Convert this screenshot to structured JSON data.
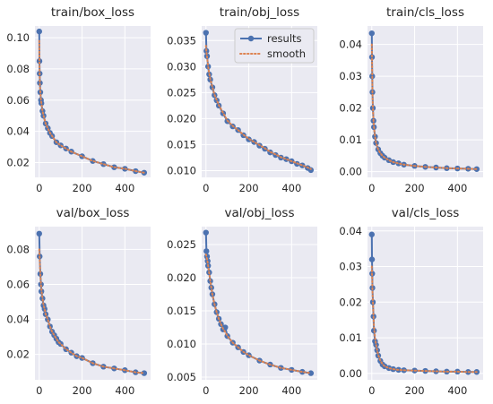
{
  "colors": {
    "results": "#4c72b0",
    "smooth": "#dd8452",
    "background": "#eaeaf2",
    "grid": "#ffffff"
  },
  "legend": {
    "placement": "top-right",
    "panel": 1,
    "items": [
      "results",
      "smooth"
    ]
  },
  "chart_data": [
    {
      "type": "line",
      "title": "train/box_loss",
      "xlim": [
        -20,
        520
      ],
      "ylim": [
        0.0105,
        0.1075
      ],
      "xticks": [
        0,
        200,
        400
      ],
      "yticks": [
        0.02,
        0.04,
        0.06,
        0.08,
        0.1
      ],
      "ytick_labels": [
        "0.02",
        "0.04",
        "0.06",
        "0.08",
        "0.10"
      ],
      "series": [
        {
          "name": "results",
          "x": [
            0,
            1,
            2,
            3,
            5,
            8,
            10,
            15,
            20,
            30,
            40,
            50,
            60,
            80,
            100,
            125,
            150,
            200,
            250,
            300,
            350,
            400,
            450,
            490
          ],
          "y": [
            0.104,
            0.085,
            0.077,
            0.071,
            0.065,
            0.06,
            0.058,
            0.053,
            0.05,
            0.045,
            0.042,
            0.039,
            0.037,
            0.033,
            0.031,
            0.029,
            0.027,
            0.024,
            0.021,
            0.019,
            0.017,
            0.016,
            0.0145,
            0.0135
          ]
        },
        {
          "name": "smooth",
          "x": [
            0,
            1,
            2,
            3,
            5,
            8,
            10,
            15,
            20,
            30,
            40,
            50,
            60,
            80,
            100,
            125,
            150,
            200,
            250,
            300,
            350,
            400,
            450,
            490
          ],
          "y": [
            0.098,
            0.084,
            0.076,
            0.07,
            0.065,
            0.06,
            0.058,
            0.053,
            0.05,
            0.045,
            0.042,
            0.039,
            0.037,
            0.033,
            0.031,
            0.029,
            0.027,
            0.024,
            0.021,
            0.019,
            0.017,
            0.016,
            0.0145,
            0.0135
          ]
        }
      ]
    },
    {
      "type": "line",
      "title": "train/obj_loss",
      "xlim": [
        -20,
        520
      ],
      "ylim": [
        0.0087,
        0.0378
      ],
      "xticks": [
        0,
        200,
        400
      ],
      "yticks": [
        0.01,
        0.015,
        0.02,
        0.025,
        0.03,
        0.035
      ],
      "ytick_labels": [
        "0.010",
        "0.015",
        "0.020",
        "0.025",
        "0.030",
        "0.035"
      ],
      "series": [
        {
          "name": "results",
          "x": [
            0,
            2,
            5,
            10,
            15,
            20,
            30,
            40,
            50,
            60,
            80,
            100,
            125,
            150,
            175,
            200,
            225,
            250,
            275,
            300,
            325,
            350,
            375,
            400,
            425,
            450,
            475,
            490
          ],
          "y": [
            0.0365,
            0.033,
            0.032,
            0.03,
            0.0285,
            0.0275,
            0.026,
            0.0245,
            0.0235,
            0.0225,
            0.021,
            0.0195,
            0.0185,
            0.0178,
            0.0168,
            0.016,
            0.0155,
            0.0148,
            0.0142,
            0.0135,
            0.013,
            0.0125,
            0.0122,
            0.0118,
            0.0113,
            0.011,
            0.0105,
            0.0101
          ]
        },
        {
          "name": "smooth",
          "x": [
            0,
            2,
            5,
            10,
            15,
            20,
            30,
            40,
            50,
            60,
            80,
            100,
            125,
            150,
            175,
            200,
            225,
            250,
            275,
            300,
            325,
            350,
            375,
            400,
            425,
            450,
            475,
            490
          ],
          "y": [
            0.034,
            0.0328,
            0.0318,
            0.03,
            0.0287,
            0.0276,
            0.0261,
            0.0246,
            0.0236,
            0.0226,
            0.0211,
            0.0196,
            0.0186,
            0.0178,
            0.0169,
            0.0161,
            0.0155,
            0.0149,
            0.0143,
            0.0136,
            0.0131,
            0.0126,
            0.0122,
            0.0118,
            0.0114,
            0.011,
            0.0106,
            0.0103
          ]
        }
      ]
    },
    {
      "type": "line",
      "title": "train/cls_loss",
      "xlim": [
        -20,
        520
      ],
      "ylim": [
        -0.0018,
        0.0458
      ],
      "xticks": [
        0,
        200,
        400
      ],
      "yticks": [
        0.0,
        0.01,
        0.02,
        0.03,
        0.04
      ],
      "ytick_labels": [
        "0.00",
        "0.01",
        "0.02",
        "0.03",
        "0.04"
      ],
      "series": [
        {
          "name": "results",
          "x": [
            0,
            1,
            2,
            3,
            5,
            8,
            10,
            15,
            20,
            30,
            40,
            50,
            60,
            80,
            100,
            125,
            150,
            200,
            250,
            300,
            350,
            400,
            450,
            490
          ],
          "y": [
            0.0435,
            0.036,
            0.03,
            0.025,
            0.02,
            0.016,
            0.014,
            0.011,
            0.009,
            0.007,
            0.0058,
            0.005,
            0.0044,
            0.0036,
            0.003,
            0.0026,
            0.0022,
            0.0018,
            0.0015,
            0.0013,
            0.0011,
            0.001,
            0.0009,
            0.0008
          ]
        },
        {
          "name": "smooth",
          "x": [
            0,
            1,
            2,
            3,
            5,
            8,
            10,
            15,
            20,
            30,
            40,
            50,
            60,
            80,
            100,
            125,
            150,
            200,
            250,
            300,
            350,
            400,
            450,
            490
          ],
          "y": [
            0.04,
            0.035,
            0.03,
            0.025,
            0.02,
            0.016,
            0.014,
            0.011,
            0.009,
            0.007,
            0.0058,
            0.005,
            0.0044,
            0.0036,
            0.003,
            0.0026,
            0.0022,
            0.0018,
            0.0015,
            0.0013,
            0.0011,
            0.001,
            0.0009,
            0.0008
          ]
        }
      ]
    },
    {
      "type": "line",
      "title": "val/box_loss",
      "xlim": [
        -20,
        520
      ],
      "ylim": [
        0.0055,
        0.093
      ],
      "xticks": [
        0,
        200,
        400
      ],
      "yticks": [
        0.02,
        0.04,
        0.06,
        0.08
      ],
      "ytick_labels": [
        "0.02",
        "0.04",
        "0.06",
        "0.08"
      ],
      "series": [
        {
          "name": "results",
          "x": [
            0,
            2,
            5,
            8,
            10,
            15,
            20,
            25,
            30,
            40,
            50,
            60,
            70,
            80,
            90,
            100,
            125,
            150,
            175,
            200,
            250,
            300,
            350,
            400,
            450,
            490
          ],
          "y": [
            0.089,
            0.076,
            0.066,
            0.06,
            0.056,
            0.052,
            0.048,
            0.046,
            0.043,
            0.04,
            0.036,
            0.033,
            0.031,
            0.029,
            0.027,
            0.026,
            0.023,
            0.021,
            0.019,
            0.018,
            0.015,
            0.013,
            0.012,
            0.011,
            0.0098,
            0.0093
          ]
        },
        {
          "name": "smooth",
          "x": [
            0,
            2,
            5,
            8,
            10,
            15,
            20,
            25,
            30,
            40,
            50,
            60,
            70,
            80,
            90,
            100,
            125,
            150,
            175,
            200,
            250,
            300,
            350,
            400,
            450,
            490
          ],
          "y": [
            0.08,
            0.074,
            0.066,
            0.06,
            0.057,
            0.052,
            0.048,
            0.046,
            0.043,
            0.04,
            0.036,
            0.033,
            0.031,
            0.029,
            0.027,
            0.026,
            0.023,
            0.021,
            0.019,
            0.018,
            0.015,
            0.013,
            0.012,
            0.011,
            0.0098,
            0.0093
          ]
        }
      ]
    },
    {
      "type": "line",
      "title": "val/obj_loss",
      "xlim": [
        -20,
        520
      ],
      "ylim": [
        0.0046,
        0.0277
      ],
      "xticks": [
        0,
        200,
        400
      ],
      "yticks": [
        0.005,
        0.01,
        0.015,
        0.02,
        0.025
      ],
      "ytick_labels": [
        "0.005",
        "0.010",
        "0.015",
        "0.020",
        "0.025"
      ],
      "series": [
        {
          "name": "results",
          "x": [
            0,
            2,
            5,
            8,
            10,
            15,
            20,
            25,
            30,
            40,
            50,
            60,
            70,
            80,
            90,
            100,
            125,
            150,
            175,
            200,
            250,
            300,
            350,
            400,
            450,
            490
          ],
          "y": [
            0.0268,
            0.024,
            0.0232,
            0.0225,
            0.0218,
            0.0208,
            0.0195,
            0.0185,
            0.0175,
            0.016,
            0.0148,
            0.0138,
            0.013,
            0.0122,
            0.0125,
            0.0112,
            0.0102,
            0.0095,
            0.0088,
            0.0083,
            0.0075,
            0.0069,
            0.0064,
            0.0061,
            0.0058,
            0.0056
          ]
        },
        {
          "name": "smooth",
          "x": [
            0,
            2,
            5,
            8,
            10,
            15,
            20,
            25,
            30,
            40,
            50,
            60,
            70,
            80,
            90,
            100,
            125,
            150,
            175,
            200,
            250,
            300,
            350,
            400,
            450,
            490
          ],
          "y": [
            0.0235,
            0.0232,
            0.0228,
            0.0223,
            0.0218,
            0.0207,
            0.0195,
            0.0185,
            0.0175,
            0.016,
            0.0148,
            0.0138,
            0.013,
            0.0123,
            0.0118,
            0.0112,
            0.0102,
            0.0095,
            0.0088,
            0.0083,
            0.0075,
            0.0069,
            0.0064,
            0.0061,
            0.0058,
            0.0056
          ]
        }
      ]
    },
    {
      "type": "line",
      "title": "val/cls_loss",
      "xlim": [
        -20,
        520
      ],
      "ylim": [
        -0.0018,
        0.0412
      ],
      "xticks": [
        0,
        200,
        400
      ],
      "yticks": [
        0.0,
        0.01,
        0.02,
        0.03,
        0.04
      ],
      "ytick_labels": [
        "0.00",
        "0.01",
        "0.02",
        "0.03",
        "0.04"
      ],
      "series": [
        {
          "name": "results",
          "x": [
            0,
            1,
            2,
            3,
            5,
            8,
            10,
            15,
            20,
            25,
            30,
            40,
            50,
            60,
            80,
            100,
            125,
            150,
            200,
            250,
            300,
            350,
            400,
            450,
            490
          ],
          "y": [
            0.039,
            0.032,
            0.028,
            0.024,
            0.02,
            0.016,
            0.012,
            0.009,
            0.008,
            0.0065,
            0.005,
            0.0035,
            0.0025,
            0.002,
            0.0015,
            0.0012,
            0.001,
            0.0009,
            0.0008,
            0.0007,
            0.0006,
            0.0005,
            0.0005,
            0.0004,
            0.0004
          ]
        },
        {
          "name": "smooth",
          "x": [
            0,
            1,
            2,
            3,
            5,
            8,
            10,
            15,
            20,
            25,
            30,
            40,
            50,
            60,
            80,
            100,
            125,
            150,
            200,
            250,
            300,
            350,
            400,
            450,
            490
          ],
          "y": [
            0.03,
            0.028,
            0.026,
            0.023,
            0.02,
            0.016,
            0.013,
            0.01,
            0.008,
            0.0065,
            0.0052,
            0.0036,
            0.0026,
            0.002,
            0.0015,
            0.0012,
            0.001,
            0.0009,
            0.0008,
            0.0007,
            0.0006,
            0.0005,
            0.0005,
            0.0004,
            0.0004
          ]
        }
      ]
    }
  ]
}
